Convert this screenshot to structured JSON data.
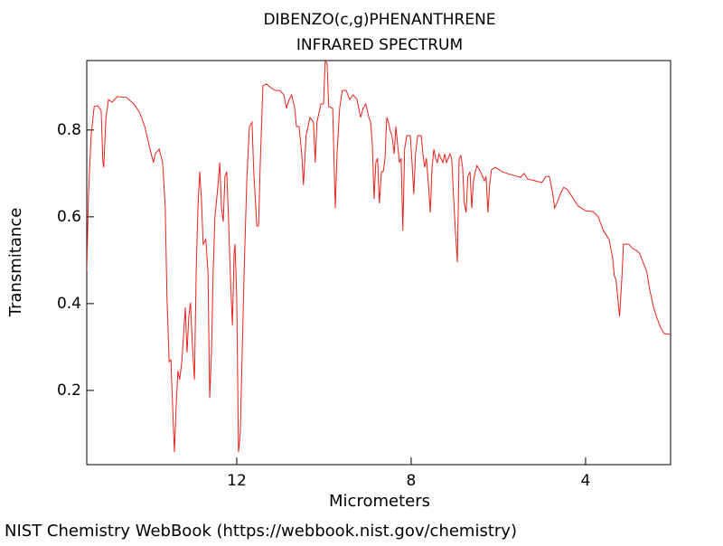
{
  "chart_data": {
    "type": "line",
    "title": "DIBENZO(c,g)PHENANTHRENE",
    "subtitle": "INFRARED SPECTRUM",
    "x_label": "Micrometers",
    "y_label": "Transmitance",
    "source": "NIST Chemistry WebBook (https://webbook.nist.gov/chemistry)",
    "color": "#e8221c",
    "xlim": [
      15.44,
      2.05
    ],
    "ylim": [
      0.029,
      0.96
    ],
    "xticks": [
      12,
      8,
      4
    ],
    "yticks": [
      0.2,
      0.4,
      0.6,
      0.8
    ],
    "x": [
      15.44,
      15.4,
      15.34,
      15.27,
      15.19,
      15.11,
      15.07,
      15.05,
      15.0,
      14.94,
      14.86,
      14.74,
      14.53,
      14.36,
      14.22,
      14.11,
      13.99,
      13.91,
      13.87,
      13.78,
      13.7,
      13.64,
      13.6,
      13.55,
      13.51,
      13.47,
      13.43,
      13.39,
      13.35,
      13.31,
      13.26,
      13.22,
      13.18,
      13.14,
      13.1,
      13.06,
      13.02,
      12.97,
      12.93,
      12.89,
      12.85,
      12.81,
      12.77,
      12.71,
      12.66,
      12.62,
      12.58,
      12.54,
      12.5,
      12.44,
      12.39,
      12.35,
      12.31,
      12.27,
      12.23,
      12.19,
      12.15,
      12.1,
      12.06,
      12.04,
      12.0,
      11.96,
      11.92,
      11.88,
      11.83,
      11.77,
      11.71,
      11.65,
      11.61,
      11.54,
      11.5,
      11.46,
      11.4,
      11.32,
      11.21,
      11.11,
      11.01,
      10.92,
      10.86,
      10.8,
      10.74,
      10.67,
      10.63,
      10.57,
      10.51,
      10.47,
      10.41,
      10.32,
      10.24,
      10.2,
      10.16,
      10.07,
      10.01,
      9.97,
      9.93,
      9.89,
      9.8,
      9.74,
      9.7,
      9.64,
      9.58,
      9.49,
      9.41,
      9.33,
      9.24,
      9.16,
      9.1,
      9.04,
      8.97,
      8.93,
      8.89,
      8.85,
      8.81,
      8.77,
      8.73,
      8.68,
      8.64,
      8.6,
      8.56,
      8.52,
      8.48,
      8.44,
      8.39,
      8.35,
      8.31,
      8.27,
      8.23,
      8.19,
      8.15,
      8.1,
      8.02,
      7.98,
      7.94,
      7.9,
      7.85,
      7.77,
      7.73,
      7.69,
      7.65,
      7.61,
      7.56,
      7.52,
      7.48,
      7.44,
      7.4,
      7.36,
      7.32,
      7.27,
      7.23,
      7.19,
      7.15,
      7.11,
      7.07,
      7.03,
      6.98,
      6.94,
      6.9,
      6.86,
      6.82,
      6.78,
      6.74,
      6.7,
      6.65,
      6.61,
      6.57,
      6.53,
      6.49,
      6.41,
      6.32,
      6.28,
      6.24,
      6.2,
      6.16,
      6.07,
      5.91,
      5.74,
      5.57,
      5.49,
      5.41,
      5.33,
      5.16,
      5.0,
      4.91,
      4.83,
      4.75,
      4.71,
      4.66,
      4.58,
      4.5,
      4.41,
      4.25,
      4.17,
      4.0,
      3.83,
      3.71,
      3.59,
      3.46,
      3.38,
      3.34,
      3.3,
      3.26,
      3.22,
      3.17,
      3.13,
      3.01,
      2.92,
      2.84,
      2.76,
      2.68,
      2.6,
      2.53,
      2.44,
      2.36,
      2.28,
      2.2,
      2.05
    ],
    "values": [
      0.475,
      0.652,
      0.787,
      0.854,
      0.856,
      0.845,
      0.725,
      0.714,
      0.829,
      0.87,
      0.864,
      0.877,
      0.875,
      0.86,
      0.839,
      0.808,
      0.756,
      0.725,
      0.745,
      0.756,
      0.725,
      0.62,
      0.412,
      0.266,
      0.27,
      0.162,
      0.058,
      0.162,
      0.245,
      0.225,
      0.266,
      0.329,
      0.391,
      0.287,
      0.37,
      0.402,
      0.308,
      0.225,
      0.475,
      0.62,
      0.704,
      0.641,
      0.537,
      0.548,
      0.475,
      0.183,
      0.287,
      0.475,
      0.6,
      0.662,
      0.725,
      0.62,
      0.589,
      0.693,
      0.704,
      0.6,
      0.475,
      0.35,
      0.516,
      0.537,
      0.412,
      0.058,
      0.1,
      0.266,
      0.475,
      0.683,
      0.808,
      0.818,
      0.704,
      0.579,
      0.579,
      0.725,
      0.902,
      0.906,
      0.897,
      0.891,
      0.891,
      0.881,
      0.85,
      0.87,
      0.881,
      0.85,
      0.808,
      0.808,
      0.745,
      0.673,
      0.787,
      0.829,
      0.818,
      0.725,
      0.818,
      0.86,
      0.86,
      0.96,
      0.954,
      0.854,
      0.85,
      0.62,
      0.745,
      0.85,
      0.891,
      0.891,
      0.87,
      0.881,
      0.87,
      0.829,
      0.85,
      0.86,
      0.829,
      0.818,
      0.766,
      0.641,
      0.725,
      0.735,
      0.631,
      0.704,
      0.704,
      0.735,
      0.829,
      0.818,
      0.798,
      0.787,
      0.745,
      0.808,
      0.766,
      0.725,
      0.735,
      0.568,
      0.756,
      0.787,
      0.787,
      0.725,
      0.652,
      0.745,
      0.787,
      0.787,
      0.745,
      0.714,
      0.735,
      0.683,
      0.61,
      0.714,
      0.756,
      0.735,
      0.725,
      0.745,
      0.735,
      0.725,
      0.745,
      0.725,
      0.735,
      0.745,
      0.735,
      0.652,
      0.558,
      0.495,
      0.735,
      0.741,
      0.714,
      0.631,
      0.61,
      0.693,
      0.704,
      0.62,
      0.683,
      0.704,
      0.718,
      0.704,
      0.683,
      0.693,
      0.61,
      0.673,
      0.708,
      0.714,
      0.704,
      0.698,
      0.693,
      0.691,
      0.7,
      0.687,
      0.683,
      0.679,
      0.693,
      0.693,
      0.652,
      0.62,
      0.631,
      0.652,
      0.668,
      0.662,
      0.637,
      0.625,
      0.614,
      0.612,
      0.6,
      0.568,
      0.548,
      0.506,
      0.464,
      0.454,
      0.412,
      0.37,
      0.454,
      0.537,
      0.537,
      0.527,
      0.523,
      0.516,
      0.495,
      0.475,
      0.433,
      0.391,
      0.366,
      0.345,
      0.331,
      0.329
    ]
  }
}
